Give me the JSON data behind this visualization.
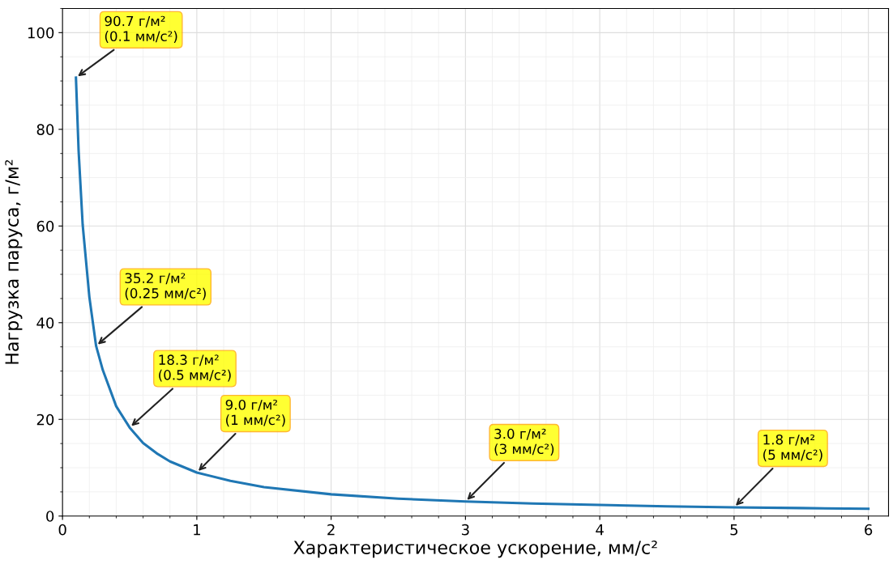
{
  "chart_data": {
    "type": "line",
    "xlabel": "Характеристическое ускорение, мм/с²",
    "ylabel": "Нагрузка паруса, г/м²",
    "x": [
      0.1,
      0.12,
      0.15,
      0.2,
      0.25,
      0.3,
      0.4,
      0.5,
      0.6,
      0.7,
      0.8,
      1,
      1.25,
      1.5,
      2,
      2.5,
      3,
      3.5,
      4,
      4.5,
      5,
      5.5,
      6
    ],
    "series": [
      {
        "color": "#1f77b4",
        "values": [
          90.7,
          75.5,
          60.3,
          45.3,
          35.2,
          30.2,
          22.7,
          18.3,
          15.1,
          13.0,
          11.3,
          9.0,
          7.3,
          6.0,
          4.5,
          3.6,
          3.0,
          2.6,
          2.3,
          2.0,
          1.8,
          1.65,
          1.5
        ]
      }
    ],
    "xlim": [
      0,
      6.15
    ],
    "ylim": [
      0,
      105
    ],
    "xticks": [
      0,
      1,
      2,
      3,
      4,
      5,
      6
    ],
    "yticks": [
      0,
      20,
      40,
      60,
      80,
      100
    ],
    "grid": true,
    "marker": "none",
    "line_style": "solid",
    "annotations": [
      {
        "text": "90.7 г/м²\n(0.1 мм/с²)",
        "x": 0.1,
        "y": 90.7
      },
      {
        "text": "35.2 г/м²\n(0.25 мм/с²)",
        "x": 0.25,
        "y": 35.2
      },
      {
        "text": "18.3 г/м²\n(0.5 мм/с²)",
        "x": 0.5,
        "y": 18.3
      },
      {
        "text": "9.0 г/м²\n(1 мм/с²)",
        "x": 1,
        "y": 9.0
      },
      {
        "text": "3.0 г/м²\n(3 мм/с²)",
        "x": 3,
        "y": 3.0
      },
      {
        "text": "1.8 г/м²\n(5 мм/с²)",
        "x": 5,
        "y": 1.8
      }
    ]
  }
}
